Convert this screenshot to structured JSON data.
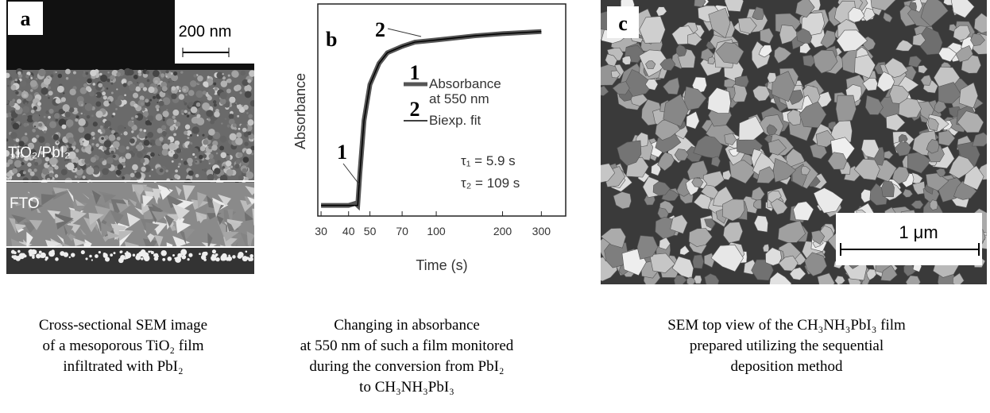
{
  "panels": [
    {
      "label": "a",
      "scale_bar": "200 nm",
      "layers": [
        "TiO₂/PbI₂",
        "FTO"
      ],
      "caption": [
        "Cross-sectional SEM image",
        "of a mesoporous TiO₂ film",
        "infiltrated with PbI₂"
      ]
    },
    {
      "chart_data": {
        "type": "line",
        "label": "b",
        "x_label": "Time (s)",
        "y_label": "Absorbance",
        "xlog": true,
        "xlim": [
          29,
          387
        ],
        "ylim": [
          0,
          1
        ],
        "xticks": [
          30,
          40,
          50,
          70,
          100,
          200,
          300
        ],
        "x": [
          30,
          40,
          43,
          44,
          45,
          47,
          50,
          55,
          60,
          70,
          80,
          100,
          150,
          200,
          300
        ],
        "series": [
          {
            "name": "Absorbance at 550 nm",
            "key": "1",
            "color": "#555555",
            "values": [
              0.05,
              0.05,
              0.06,
              0.05,
              0.2,
              0.45,
              0.62,
              0.72,
              0.77,
              0.8,
              0.82,
              0.83,
              0.85,
              0.86,
              0.87
            ]
          },
          {
            "name": "Biexp. fit",
            "key": "2",
            "color": "#000000",
            "values": [
              0.05,
              0.05,
              0.05,
              0.05,
              0.2,
              0.45,
              0.62,
              0.72,
              0.77,
              0.8,
              0.82,
              0.83,
              0.85,
              0.86,
              0.87
            ]
          }
        ],
        "annotations": [
          "1",
          "2"
        ],
        "parameters": [
          "τ₁ = 5.9 s",
          "τ₂ = 109 s"
        ]
      },
      "caption": [
        "Changing in absorbance",
        "at 550 nm of such a film monitored",
        "during the conversion from PbI₂",
        "to CH₃NH₃PbI₃"
      ]
    },
    {
      "label": "c",
      "scale_bar": "1 μm",
      "caption": [
        "SEM top view of the CH₃NH₃PbI₃ film",
        "prepared utilizing the sequential",
        "deposition method"
      ]
    }
  ]
}
